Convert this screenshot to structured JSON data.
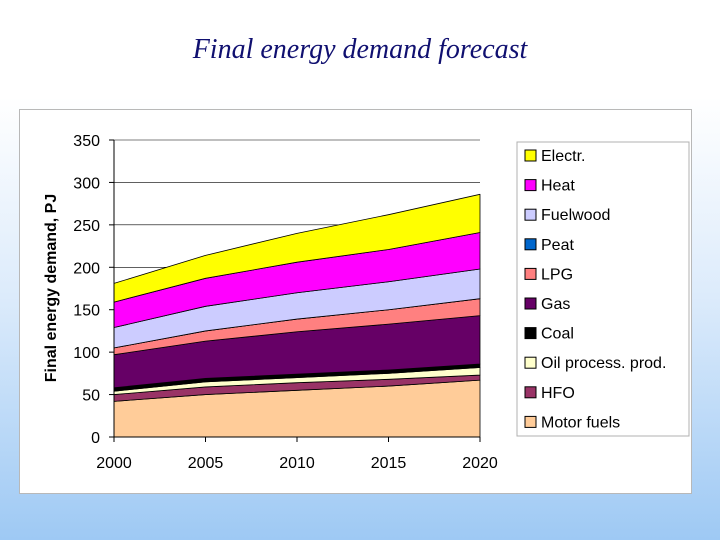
{
  "slide": {
    "title": "Final energy demand forecast"
  },
  "chart_data": {
    "type": "area",
    "stacked": true,
    "title": "",
    "xlabel": "",
    "ylabel": "Final energy demand, PJ",
    "x": [
      2000,
      2005,
      2010,
      2015,
      2020
    ],
    "ylim": [
      0,
      350
    ],
    "yticks": [
      0,
      50,
      100,
      150,
      200,
      250,
      300,
      350
    ],
    "grid": "horizontal",
    "legend_position": "right",
    "series": [
      {
        "name": "Motor fuels",
        "color": "#ffcc99",
        "values": [
          42,
          50,
          55,
          60,
          67
        ]
      },
      {
        "name": "HFO",
        "color": "#993366",
        "values": [
          8,
          9,
          9,
          8,
          6
        ]
      },
      {
        "name": "Oil process. prod.",
        "color": "#ffffcc",
        "values": [
          4,
          6,
          6,
          7,
          9
        ]
      },
      {
        "name": "Coal",
        "color": "#000000",
        "values": [
          4,
          4,
          4,
          4,
          4
        ]
      },
      {
        "name": "Gas",
        "color": "#660066",
        "values": [
          39,
          44,
          50,
          54,
          57
        ]
      },
      {
        "name": "LPG",
        "color": "#ff8080",
        "values": [
          8,
          12,
          15,
          17,
          20
        ]
      },
      {
        "name": "Peat",
        "color": "#0066cc",
        "values": [
          0,
          0,
          0,
          0,
          0
        ]
      },
      {
        "name": "Fuelwood",
        "color": "#ccccff",
        "values": [
          24,
          29,
          31,
          33,
          35
        ]
      },
      {
        "name": "Heat",
        "color": "#ff00ff",
        "values": [
          30,
          33,
          36,
          38,
          43
        ]
      },
      {
        "name": "Electr.",
        "color": "#ffff00",
        "values": [
          22,
          27,
          34,
          41,
          45
        ]
      }
    ]
  }
}
